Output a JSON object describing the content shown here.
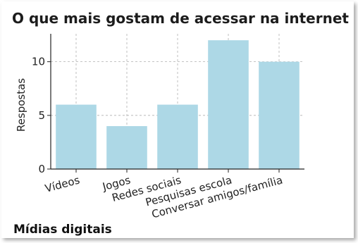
{
  "chart_data": {
    "type": "bar",
    "title": "O que mais gostam de acessar na internet",
    "xlabel": "",
    "ylabel": "Respostas",
    "categories": [
      "Vídeos",
      "Jogos",
      "Redes sociais",
      "Pesquisas escola",
      "Conversar amigos/família"
    ],
    "values": [
      6,
      4,
      6,
      12,
      10
    ],
    "ylim": [
      0,
      12.6
    ],
    "yticks": [
      0,
      5,
      10
    ],
    "grid": true,
    "bar_color": "#add8e6",
    "grid_color": "#b0b0b0"
  },
  "caption": "Mídias digitais"
}
